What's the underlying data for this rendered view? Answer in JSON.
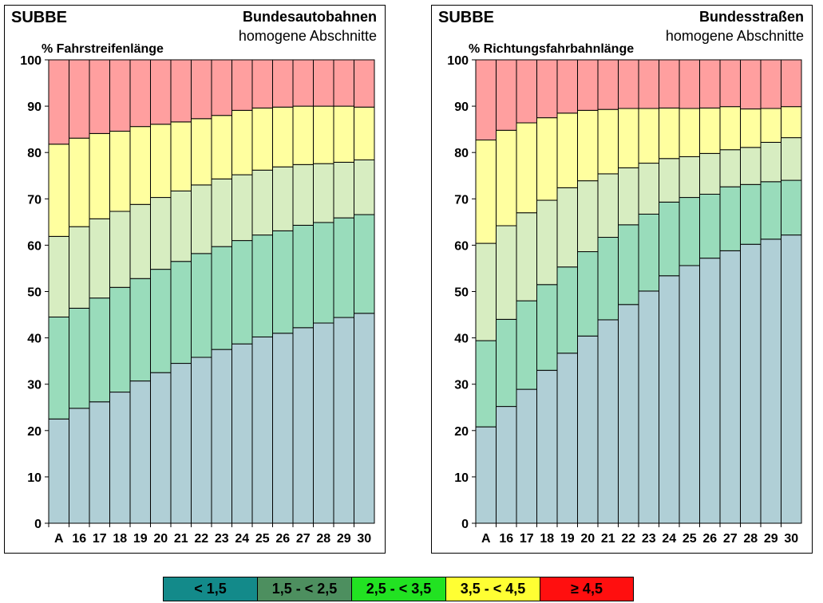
{
  "chart_data": [
    {
      "type": "bar",
      "stacked": true,
      "brand": "SUBBE",
      "title": "Bundesautobahnen",
      "subtitle": "homogene Abschnitte",
      "ylabel": "% Fahrstreifenlänge",
      "ylim": [
        0,
        100
      ],
      "yticks": [
        0,
        10,
        20,
        30,
        40,
        50,
        60,
        70,
        80,
        90,
        100
      ],
      "categories": [
        "A",
        "16",
        "17",
        "18",
        "19",
        "20",
        "21",
        "22",
        "23",
        "24",
        "25",
        "26",
        "27",
        "28",
        "29",
        "30"
      ],
      "series": [
        {
          "name": "< 1,5",
          "color": "#b0cfd6",
          "values": [
            22.5,
            24.8,
            26.2,
            28.3,
            30.7,
            32.5,
            34.5,
            35.8,
            37.5,
            38.7,
            40.2,
            41.0,
            42.2,
            43.2,
            44.4,
            45.3
          ]
        },
        {
          "name": "1,5 - < 2,5",
          "color": "#99dcbb",
          "values": [
            22.0,
            21.6,
            22.4,
            22.6,
            22.1,
            22.3,
            22.0,
            22.4,
            22.2,
            22.3,
            22.0,
            22.1,
            22.1,
            21.7,
            21.5,
            21.3
          ]
        },
        {
          "name": "2,5 - < 3,5",
          "color": "#d7edc1",
          "values": [
            17.4,
            17.6,
            17.1,
            16.4,
            16.0,
            15.5,
            15.2,
            14.8,
            14.6,
            14.2,
            14.0,
            13.8,
            13.1,
            12.7,
            12.0,
            11.8
          ]
        },
        {
          "name": "3,5 - < 4,5",
          "color": "#ffff9f",
          "values": [
            19.9,
            19.1,
            18.4,
            17.3,
            16.8,
            15.8,
            14.9,
            14.3,
            13.7,
            13.9,
            13.4,
            12.9,
            12.6,
            12.4,
            12.1,
            11.4
          ]
        },
        {
          "name": "≥ 4,5",
          "color": "#ff9f9f",
          "values": [
            18.2,
            16.9,
            15.9,
            15.4,
            14.4,
            13.9,
            13.4,
            12.7,
            12.0,
            10.9,
            10.4,
            10.2,
            10.0,
            10.0,
            10.0,
            10.2
          ]
        }
      ]
    },
    {
      "type": "bar",
      "stacked": true,
      "brand": "SUBBE",
      "title": "Bundesstraßen",
      "subtitle": "homogene Abschnitte",
      "ylabel": "% Richtungsfahrbahnlänge",
      "ylim": [
        0,
        100
      ],
      "yticks": [
        0,
        10,
        20,
        30,
        40,
        50,
        60,
        70,
        80,
        90,
        100
      ],
      "categories": [
        "A",
        "16",
        "17",
        "18",
        "19",
        "20",
        "21",
        "22",
        "23",
        "24",
        "25",
        "26",
        "27",
        "28",
        "29",
        "30"
      ],
      "series": [
        {
          "name": "< 1,5",
          "color": "#b0cfd6",
          "values": [
            20.8,
            25.2,
            28.9,
            33.0,
            36.7,
            40.4,
            43.9,
            47.2,
            50.1,
            53.4,
            55.6,
            57.2,
            58.8,
            60.2,
            61.3,
            62.2
          ]
        },
        {
          "name": "1,5 - < 2,5",
          "color": "#99dcbb",
          "values": [
            18.6,
            18.8,
            19.1,
            18.5,
            18.6,
            18.2,
            17.8,
            17.2,
            16.6,
            15.9,
            14.7,
            13.8,
            13.8,
            12.9,
            12.4,
            11.8
          ]
        },
        {
          "name": "2,5 - < 3,5",
          "color": "#d7edc1",
          "values": [
            21.0,
            20.2,
            19.0,
            18.2,
            17.1,
            15.3,
            13.7,
            12.3,
            11.0,
            9.4,
            8.8,
            8.8,
            8.0,
            8.0,
            8.5,
            9.2
          ]
        },
        {
          "name": "3,5 - < 4,5",
          "color": "#ffff9f",
          "values": [
            22.3,
            20.6,
            19.4,
            17.8,
            16.1,
            15.2,
            13.9,
            12.8,
            11.8,
            10.9,
            10.4,
            9.8,
            9.3,
            8.3,
            7.3,
            6.7
          ]
        },
        {
          "name": "≥ 4,5",
          "color": "#ff9f9f",
          "values": [
            17.3,
            15.2,
            13.6,
            12.5,
            11.5,
            10.9,
            10.7,
            10.5,
            10.5,
            10.4,
            10.5,
            10.4,
            10.1,
            10.6,
            10.5,
            10.1
          ]
        }
      ]
    }
  ],
  "legend": [
    {
      "label": "< 1,5",
      "color": "#138a8a"
    },
    {
      "label": "1,5 - < 2,5",
      "color": "#4d8f5f"
    },
    {
      "label": "2,5 - < 3,5",
      "color": "#22e222"
    },
    {
      "label": "3,5 - < 4,5",
      "color": "#ffff33"
    },
    {
      "label": "≥ 4,5",
      "color": "#ff0f0f"
    }
  ]
}
